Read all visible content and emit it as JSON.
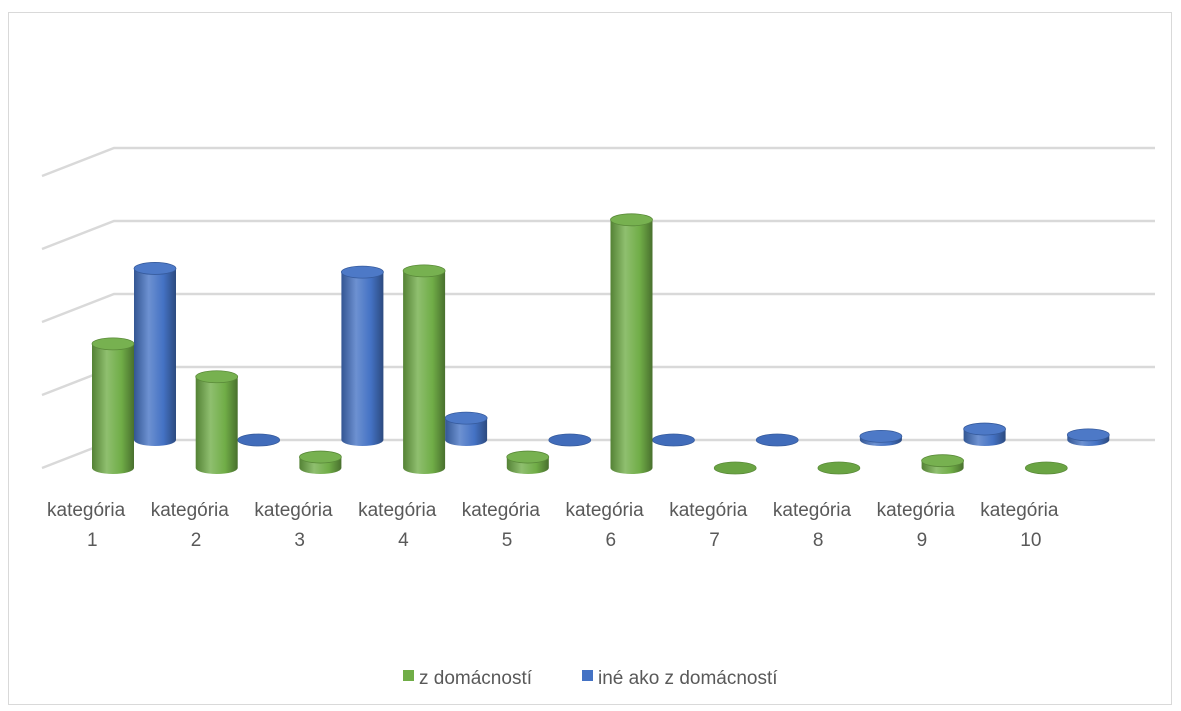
{
  "chart_data": {
    "type": "bar",
    "style": "3d-cylinder",
    "categories": [
      [
        "kategória",
        "1"
      ],
      [
        "kategória",
        "2"
      ],
      [
        "kategória",
        "3"
      ],
      [
        "kategória",
        "4"
      ],
      [
        "kategória",
        "5"
      ],
      [
        "kategória",
        "6"
      ],
      [
        "kategória",
        "7"
      ],
      [
        "kategória",
        "8"
      ],
      [
        "kategória",
        "9"
      ],
      [
        "kategória",
        "10"
      ]
    ],
    "series": [
      {
        "name": "z domácností",
        "color": "#70ad47",
        "values": [
          1.7,
          1.25,
          0.15,
          2.7,
          0.15,
          3.4,
          0.0,
          0.0,
          0.1,
          0.0
        ]
      },
      {
        "name": "iné ako z domácností",
        "color": "#4472c4",
        "values": [
          2.35,
          0.0,
          2.3,
          0.3,
          0.0,
          0.0,
          0.0,
          0.05,
          0.15,
          0.07
        ]
      }
    ],
    "ylim": [
      0,
      4
    ],
    "gridlines": true,
    "axis_labels_shown": false,
    "legend_position": "bottom"
  }
}
